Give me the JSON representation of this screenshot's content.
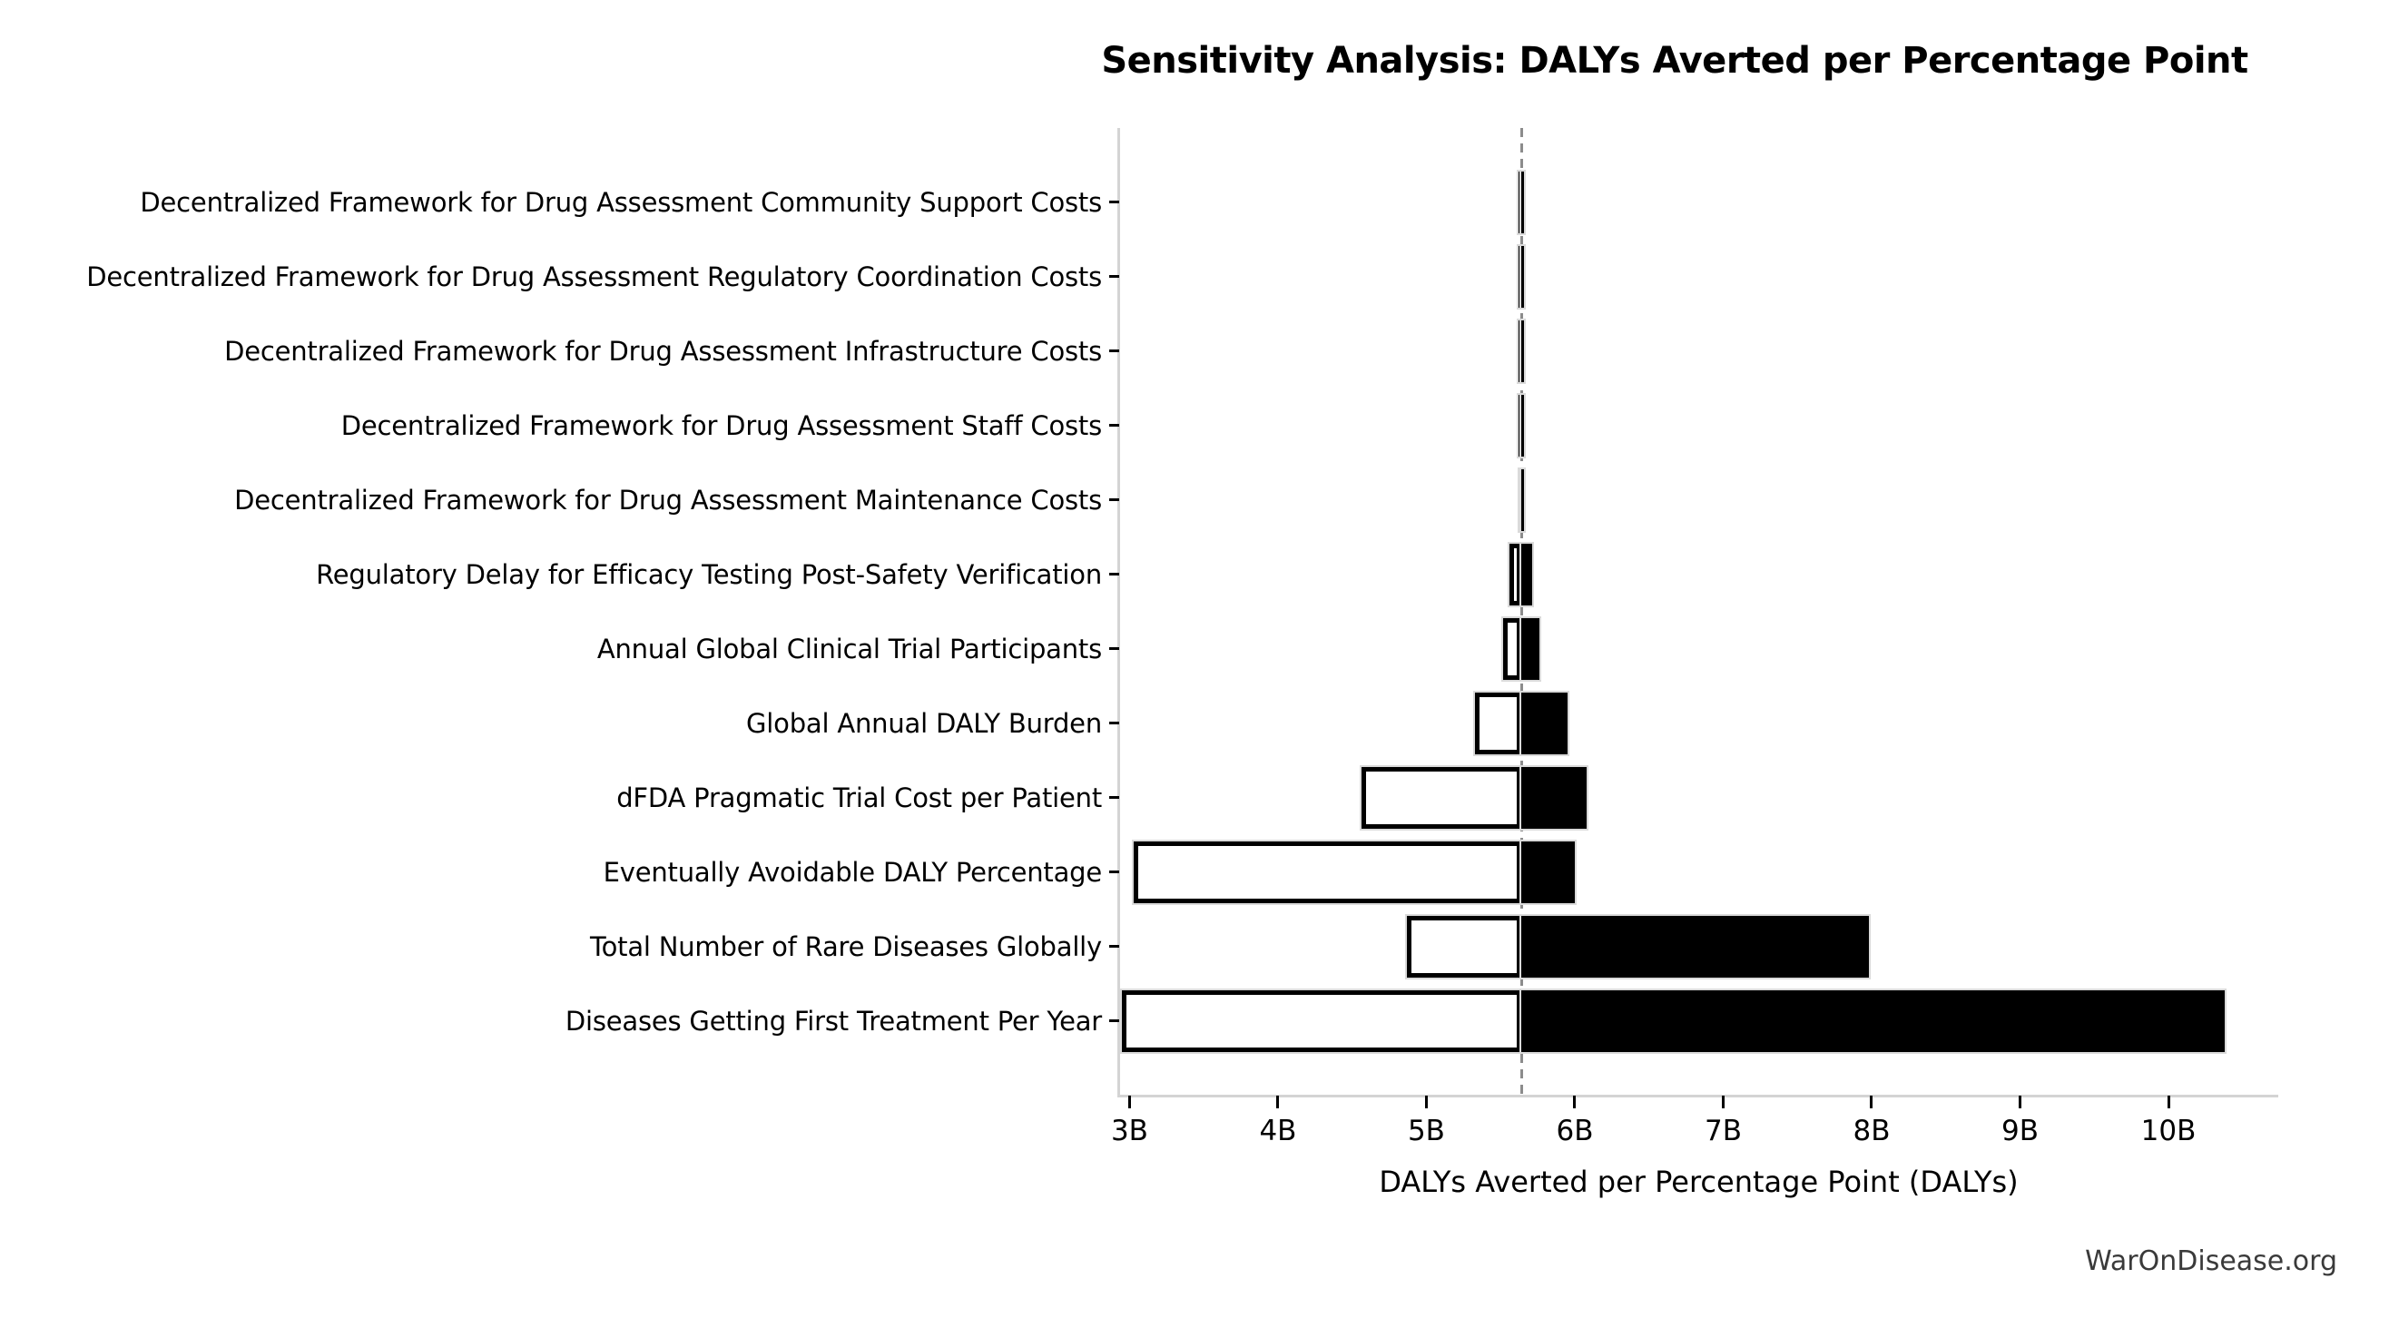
{
  "watermark": "WarOnDisease.org",
  "chart_data": {
    "type": "bar",
    "subtype": "tornado-sensitivity",
    "orientation": "horizontal",
    "title": "Sensitivity Analysis: DALYs Averted per Percentage Point",
    "xlabel": "DALYs Averted per Percentage Point (DALYs)",
    "ylabel": "",
    "unit": "billions of DALYs",
    "grid": false,
    "legend": false,
    "xlim": [
      2.93,
      10.74
    ],
    "x_ticks": [
      {
        "value": 3,
        "label": "3B"
      },
      {
        "value": 4,
        "label": "4B"
      },
      {
        "value": 5,
        "label": "5B"
      },
      {
        "value": 6,
        "label": "6B"
      },
      {
        "value": 7,
        "label": "7B"
      },
      {
        "value": 8,
        "label": "8B"
      },
      {
        "value": 9,
        "label": "9B"
      },
      {
        "value": 10,
        "label": "10B"
      }
    ],
    "baseline": {
      "value": 5.64,
      "line_style": "dashed",
      "color": "#8c8c8c"
    },
    "bar_style": {
      "low_fill": "#ffffff",
      "high_fill": "#000000",
      "edge_color": "#000000",
      "halo_color": "#dadada"
    },
    "rows": [
      {
        "category": "Decentralized Framework for Drug Assessment Community Support Costs",
        "low": 5.62,
        "high": 5.66
      },
      {
        "category": "Decentralized Framework for Drug Assessment Regulatory Coordination Costs",
        "low": 5.62,
        "high": 5.66
      },
      {
        "category": "Decentralized Framework for Drug Assessment Infrastructure Costs",
        "low": 5.62,
        "high": 5.66
      },
      {
        "category": "Decentralized Framework for Drug Assessment Staff Costs",
        "low": 5.62,
        "high": 5.66
      },
      {
        "category": "Decentralized Framework for Drug Assessment Maintenance Costs",
        "low": 5.63,
        "high": 5.66
      },
      {
        "category": "Regulatory Delay for Efficacy Testing Post-Safety Verification",
        "low": 5.56,
        "high": 5.71
      },
      {
        "category": "Annual Global Clinical Trial Participants",
        "low": 5.52,
        "high": 5.76
      },
      {
        "category": "Global Annual DALY Burden",
        "low": 5.33,
        "high": 5.95
      },
      {
        "category": "dFDA Pragmatic Trial Cost per Patient",
        "low": 4.56,
        "high": 6.08
      },
      {
        "category": "Eventually Avoidable DALY Percentage",
        "low": 3.03,
        "high": 6.0
      },
      {
        "category": "Total Number of Rare Diseases Globally",
        "low": 4.87,
        "high": 7.98
      },
      {
        "category": "Diseases Getting First Treatment Per Year",
        "low": 2.95,
        "high": 10.38
      }
    ]
  }
}
